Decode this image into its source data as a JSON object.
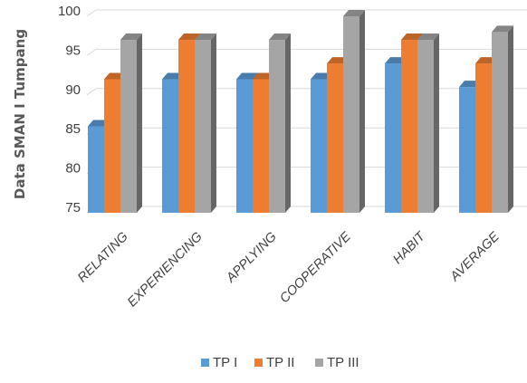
{
  "chart_data": {
    "type": "bar",
    "title": "",
    "xlabel": "",
    "ylabel": "Data SMAN I Tumpang",
    "ylim": [
      75,
      100
    ],
    "yticks": [
      75,
      80,
      85,
      90,
      95,
      100
    ],
    "grid": true,
    "legend_position": "bottom",
    "style": "3d-clustered",
    "categories": [
      "RELATING",
      "EXPERIENCING",
      "APPLYING",
      "COOPERATIVE",
      "HABIT",
      "AVERAGE"
    ],
    "series": [
      {
        "name": "TP I",
        "color": "#5b9bd5",
        "values": [
          86,
          92,
          92,
          92,
          94,
          91
        ]
      },
      {
        "name": "TP II",
        "color": "#ed7d31",
        "values": [
          92,
          97,
          92,
          94,
          97,
          94
        ]
      },
      {
        "name": "TP III",
        "color": "#a5a5a5",
        "values": [
          97,
          97,
          97,
          100,
          97,
          98
        ]
      }
    ]
  }
}
